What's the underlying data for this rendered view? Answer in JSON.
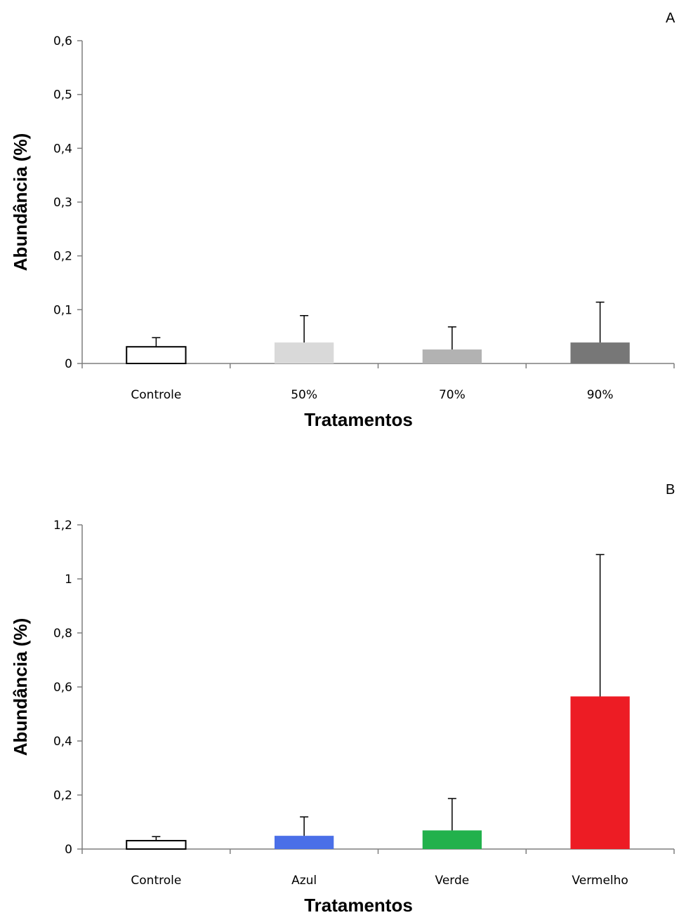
{
  "chart_data": [
    {
      "type": "bar",
      "panel_label": "A",
      "categories": [
        "Controle",
        "50%",
        "70%",
        "90%"
      ],
      "values": [
        0.031,
        0.039,
        0.026,
        0.039
      ],
      "errors": [
        0.017,
        0.05,
        0.042,
        0.075
      ],
      "colors": [
        "#ffffff",
        "#d9d9d9",
        "#b2b2b2",
        "#777777"
      ],
      "xlabel": "Tratamentos",
      "ylabel": "Abundância (%)",
      "ylim": [
        0,
        0.6
      ],
      "yticks": [
        0,
        0.1,
        0.2,
        0.3,
        0.4,
        0.5,
        0.6
      ],
      "ytick_labels": [
        "0",
        "0,1",
        "0,2",
        "0,3",
        "0,4",
        "0,5",
        "0,6"
      ],
      "grid": false,
      "legend": "none"
    },
    {
      "type": "bar",
      "panel_label": "B",
      "categories": [
        "Controle",
        "Azul",
        "Verde",
        "Vermelho"
      ],
      "values": [
        0.031,
        0.049,
        0.069,
        0.565
      ],
      "errors": [
        0.015,
        0.07,
        0.118,
        0.525
      ],
      "colors": [
        "#ffffff",
        "#4a6fe8",
        "#22b14c",
        "#ed1c24"
      ],
      "xlabel": "Tratamentos",
      "ylabel": "Abundância (%)",
      "ylim": [
        0,
        1.2
      ],
      "yticks": [
        0,
        0.2,
        0.4,
        0.6,
        0.8,
        1.0,
        1.2
      ],
      "ytick_labels": [
        "0",
        "0,2",
        "0,4",
        "0,6",
        "0,8",
        "1",
        "1,2"
      ],
      "grid": false,
      "legend": "none"
    }
  ]
}
